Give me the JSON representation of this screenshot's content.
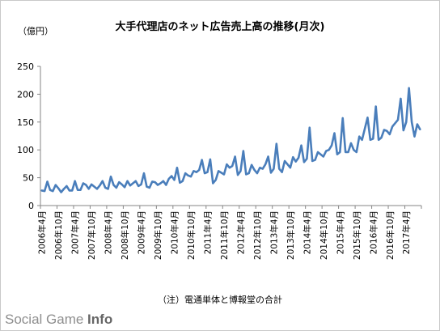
{
  "title": "大手代理店のネット広告売上高の推移(月次)",
  "unit_label": "（億円）",
  "note": "（注）電通単体と博報堂の合計",
  "logo": {
    "part1": "Social Game ",
    "part2": "Info"
  },
  "chart_data": {
    "type": "line",
    "title": "大手代理店のネット広告売上高の推移(月次)",
    "ylabel": "（億円）",
    "ylim": [
      0,
      250
    ],
    "yticks": [
      0,
      50,
      100,
      150,
      200,
      250
    ],
    "grid": false,
    "legend": "none",
    "line_color": "#4a7ebb",
    "x_tick_labels": [
      "2006年4月",
      "2006年10月",
      "2007年4月",
      "2007年10月",
      "2008年4月",
      "2008年10月",
      "2009年4月",
      "2009年10月",
      "2010年4月",
      "2010年10月",
      "2011年4月",
      "2011年10月",
      "2012年4月",
      "2012年10月",
      "2013年4月",
      "2013年10月",
      "2014年4月",
      "2014年10月",
      "2015年4月",
      "2015年10月",
      "2016年4月",
      "2016年10月",
      "2017年4月"
    ],
    "series": [
      {
        "values": [
          27,
          26,
          43,
          28,
          26,
          37,
          31,
          24,
          30,
          35,
          27,
          27,
          44,
          28,
          28,
          40,
          37,
          30,
          38,
          34,
          30,
          36,
          44,
          32,
          30,
          52,
          37,
          32,
          42,
          38,
          33,
          44,
          36,
          40,
          44,
          35,
          38,
          58,
          34,
          32,
          43,
          42,
          37,
          40,
          44,
          37,
          48,
          53,
          46,
          68,
          41,
          44,
          58,
          54,
          52,
          62,
          60,
          64,
          82,
          58,
          60,
          83,
          40,
          46,
          62,
          59,
          56,
          74,
          68,
          71,
          88,
          55,
          62,
          98,
          56,
          58,
          73,
          64,
          58,
          68,
          66,
          74,
          88,
          59,
          66,
          111,
          66,
          60,
          80,
          74,
          68,
          87,
          79,
          86,
          108,
          78,
          84,
          140,
          80,
          82,
          96,
          92,
          88,
          98,
          100,
          108,
          130,
          92,
          96,
          157,
          96,
          96,
          112,
          100,
          96,
          124,
          118,
          138,
          158,
          118,
          120,
          178,
          118,
          122,
          136,
          134,
          128,
          142,
          148,
          154,
          192,
          135,
          150,
          211,
          150,
          124,
          146,
          137
        ]
      }
    ]
  }
}
